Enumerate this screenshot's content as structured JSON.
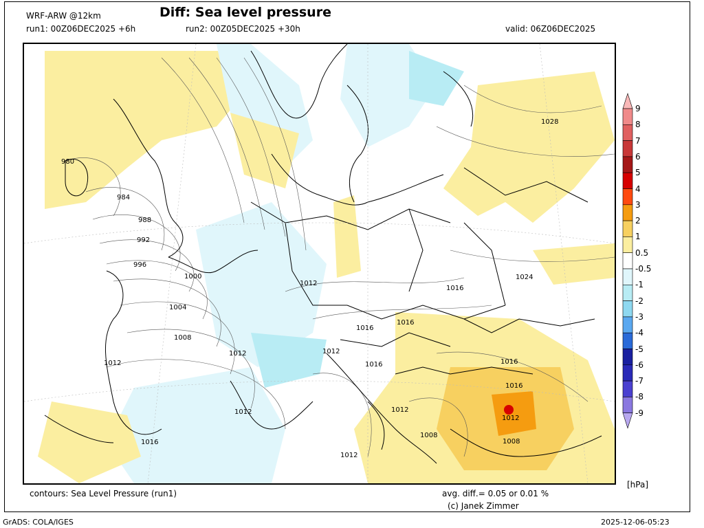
{
  "header": {
    "model": "WRF-ARW @12km",
    "title": "Diff: Sea level pressure",
    "run1": "run1: 00Z06DEC2025 +6h",
    "run2": "run2: 00Z05DEC2025 +30h",
    "valid": "valid: 06Z06DEC2025"
  },
  "footer": {
    "contours": "contours: Sea Level Pressure (run1)",
    "avg_diff": "avg. diff.=  0.05    or  0.01   %",
    "credit": "(c) Janek Zimmer",
    "grads": "GrADS: COLA/IGES",
    "timestamp": "2025-12-06-05:23"
  },
  "colorbar": {
    "unit": "[hPa]",
    "labels": [
      "9",
      "8",
      "7",
      "6",
      "5",
      "4",
      "3",
      "2",
      "1",
      "0.5",
      "-0.5",
      "-1",
      "-2",
      "-3",
      "-4",
      "-5",
      "-6",
      "-7",
      "-8",
      "-9"
    ],
    "colors": [
      "#f9b8b8",
      "#f08a8a",
      "#e06060",
      "#c83838",
      "#a51818",
      "#d60000",
      "#ff4a10",
      "#f59c10",
      "#f7d060",
      "#fbeea0",
      "#ffffff",
      "#e0f6fb",
      "#b8ecf4",
      "#8ed8f0",
      "#5aa8f0",
      "#2a6ad8",
      "#1a20a0",
      "#2a2ab8",
      "#4a40d0",
      "#8a78e0",
      "#b8a8f0"
    ]
  },
  "map": {
    "isobar_labels": [
      {
        "text": "980"
      },
      {
        "text": "984"
      },
      {
        "text": "988"
      },
      {
        "text": "992"
      },
      {
        "text": "996"
      },
      {
        "text": "1000"
      },
      {
        "text": "1004"
      },
      {
        "text": "1008"
      },
      {
        "text": "1012"
      },
      {
        "text": "1012"
      },
      {
        "text": "1012"
      },
      {
        "text": "1012"
      },
      {
        "text": "1012"
      },
      {
        "text": "1012"
      },
      {
        "text": "1012"
      },
      {
        "text": "1012"
      },
      {
        "text": "1016"
      },
      {
        "text": "1016"
      },
      {
        "text": "1016"
      },
      {
        "text": "1016"
      },
      {
        "text": "1016"
      },
      {
        "text": "1016"
      },
      {
        "text": "1016"
      },
      {
        "text": "1024"
      },
      {
        "text": "1028"
      },
      {
        "text": "1008"
      },
      {
        "text": "1008"
      }
    ]
  }
}
